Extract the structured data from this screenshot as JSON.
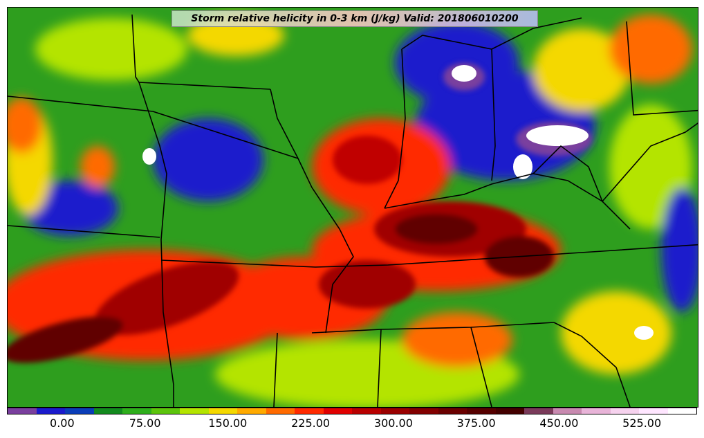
{
  "title": "Storm relative helicity in 0-3 km (J/kg) Valid: 201806010200",
  "colorbar": {
    "colors": [
      "#7a3f9e",
      "#1a1acc",
      "#0a3db8",
      "#128a1e",
      "#2eae1c",
      "#5cc40c",
      "#b4e400",
      "#f4d800",
      "#ffaa00",
      "#ff6a00",
      "#ff2a00",
      "#e00000",
      "#b80000",
      "#9a0000",
      "#820000",
      "#6a0000",
      "#560000",
      "#440000",
      "#7a3a5a",
      "#c88ab0",
      "#e8b4d8",
      "#f6d2ee",
      "#ffe6ff",
      "#ffffff"
    ],
    "tick_labels": [
      "0.00",
      "75.00",
      "150.00",
      "225.00",
      "300.00",
      "375.00",
      "450.00",
      "525.00"
    ],
    "tick_values": [
      0,
      75,
      150,
      225,
      300,
      375,
      450,
      525
    ],
    "min": -50,
    "max": 575
  },
  "map_colors": {
    "background": "#2e9e1e",
    "green_light": "#5cc40c",
    "yellow_green": "#b4e400",
    "yellow": "#f4d800",
    "orange": "#ffaa00",
    "red": "#ff2a00",
    "dark_red": "#a00000",
    "maroon": "#600000",
    "blue": "#1a1acc",
    "purple": "#7a3f9e",
    "white": "#ffffff",
    "border": "#000000"
  }
}
